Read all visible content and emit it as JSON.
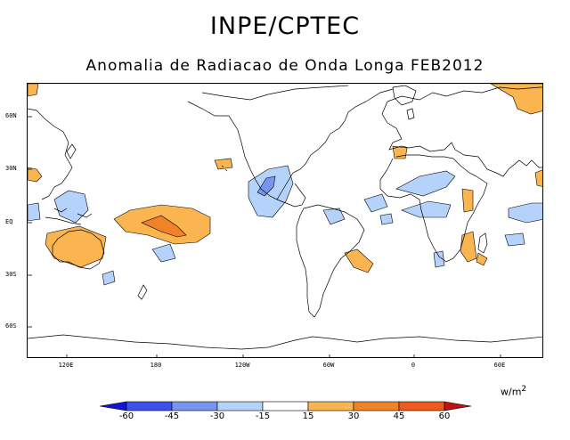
{
  "title": "INPE/CPTEC",
  "subtitle": "Anomalia de Radiacao de Onda Longa FEB2012",
  "map": {
    "lat_labels": [
      "60N",
      "30N",
      "EQ",
      "30S",
      "60S"
    ],
    "lon_labels": [
      "120E",
      "180",
      "120W",
      "60W",
      "0",
      "60E"
    ],
    "units_main": "w/m",
    "units_exp": "2"
  },
  "colorbar": {
    "labels": [
      "-60",
      "-45",
      "-30",
      "-15",
      "15",
      "30",
      "45",
      "60"
    ],
    "colors": [
      "#1414d2",
      "#3c50f0",
      "#7896f0",
      "#b4d2fa",
      "#ffffff",
      "#fab450",
      "#f08228",
      "#f05a1e",
      "#be1414"
    ]
  }
}
